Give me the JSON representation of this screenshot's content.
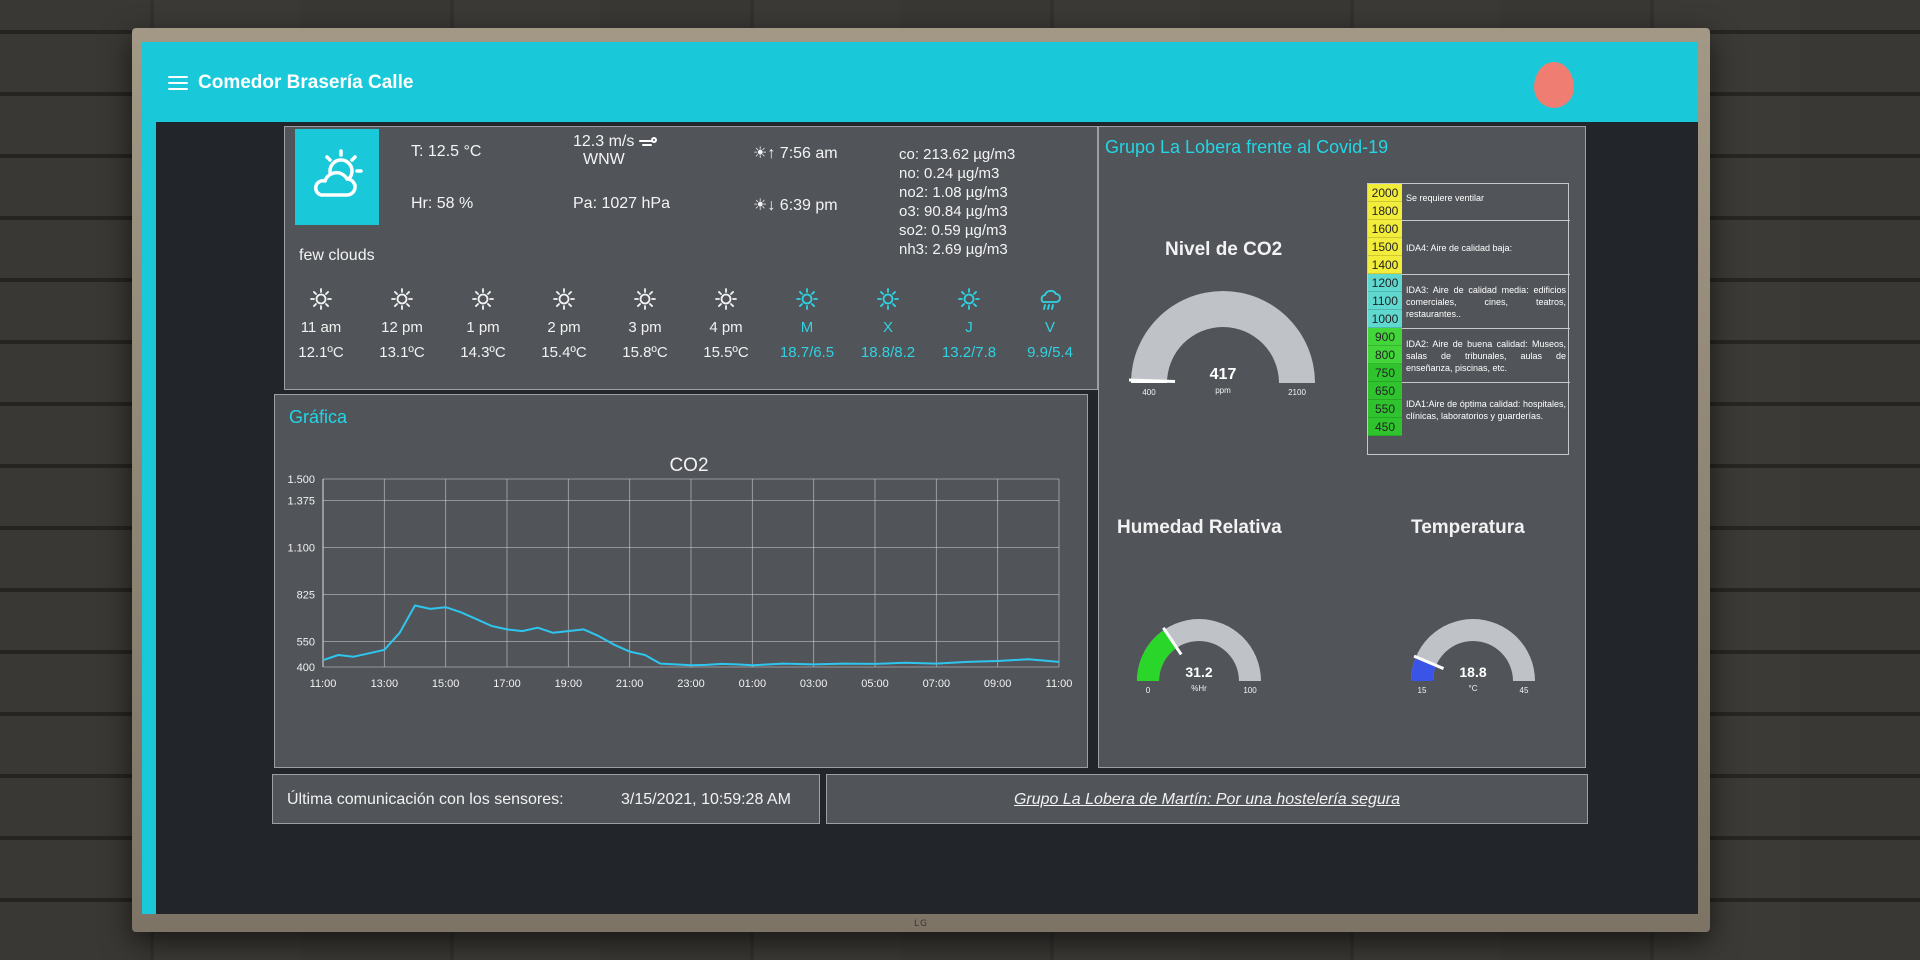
{
  "header": {
    "title": "Comedor Brasería Calle"
  },
  "weather": {
    "temperature": "T: 12.5 °C",
    "humidity": "Hr: 58 %",
    "wind_speed": "12.3 m/s",
    "wind_dir": "WNW",
    "pressure": "Pa: 1027 hPa",
    "sunrise": "7:56 am",
    "sunset": "6:39 pm",
    "condition": "few clouds",
    "main_icon": "partly-cloudy-day-icon",
    "air_quality": [
      "co: 213.62 µg/m3",
      "no: 0.24 µg/m3",
      "no2: 1.08 µg/m3",
      "o3: 90.84 µg/m3",
      "so2: 0.59 µg/m3",
      "nh3: 2.69 µg/m3"
    ],
    "hourly": [
      {
        "label": "11 am",
        "value": "12.1ºC",
        "icon": "sun-icon"
      },
      {
        "label": "12 pm",
        "value": "13.1ºC",
        "icon": "sun-icon"
      },
      {
        "label": "1 pm",
        "value": "14.3ºC",
        "icon": "sun-icon"
      },
      {
        "label": "2 pm",
        "value": "15.4ºC",
        "icon": "sun-icon"
      },
      {
        "label": "3 pm",
        "value": "15.8ºC",
        "icon": "sun-icon"
      },
      {
        "label": "4 pm",
        "value": "15.5ºC",
        "icon": "sun-icon"
      }
    ],
    "daily": [
      {
        "label": "M",
        "value": "18.7/6.5",
        "icon": "sun-icon"
      },
      {
        "label": "X",
        "value": "18.8/8.2",
        "icon": "sun-icon"
      },
      {
        "label": "J",
        "value": "13.2/7.8",
        "icon": "sun-icon"
      },
      {
        "label": "V",
        "value": "9.9/5.4",
        "icon": "rain-cloud-icon"
      }
    ]
  },
  "graph": {
    "panel_title": "Gráfica",
    "chart_data": {
      "type": "line",
      "title": "CO2",
      "xlabel": "",
      "ylabel": "",
      "ylim": [
        400,
        1500
      ],
      "yticks": [
        400,
        550,
        825,
        1100,
        1375,
        1500
      ],
      "ytick_labels": [
        "400",
        "550",
        "825",
        "1.100",
        "1.375",
        "1.500"
      ],
      "xtick_labels": [
        "11:00",
        "13:00",
        "15:00",
        "17:00",
        "19:00",
        "21:00",
        "23:00",
        "01:00",
        "03:00",
        "05:00",
        "07:00",
        "09:00",
        "11:00"
      ],
      "grid": true,
      "series": [
        {
          "color": "#2ec6ee",
          "x": [
            0,
            0.5,
            1,
            1.5,
            2,
            2.5,
            3,
            3.5,
            4,
            4.5,
            5,
            5.5,
            6,
            6.5,
            7,
            7.5,
            8,
            8.5,
            9,
            9.5,
            10,
            10.5,
            11,
            11.5,
            12,
            12.5,
            13,
            13.5,
            14,
            15,
            16,
            17,
            18,
            19,
            20,
            21,
            22,
            23,
            24
          ],
          "values": [
            440,
            470,
            460,
            480,
            500,
            600,
            760,
            740,
            750,
            720,
            680,
            640,
            620,
            610,
            630,
            600,
            610,
            620,
            580,
            530,
            490,
            470,
            420,
            415,
            410,
            412,
            418,
            415,
            410,
            420,
            415,
            420,
            418,
            425,
            420,
            430,
            435,
            445,
            430
          ]
        }
      ]
    }
  },
  "covid": {
    "title": "Grupo La Lobera frente al Covid-19",
    "co2_gauge": {
      "title": "Nivel de CO2",
      "value": "417",
      "unit": "ppm",
      "min": "400",
      "max": "2100",
      "fraction": 0.01
    },
    "humidity_gauge": {
      "title": "Humedad Relativa",
      "value": "31.2",
      "unit": "%Hr",
      "min": "0",
      "max": "100",
      "fraction": 0.312
    },
    "temp_gauge": {
      "title": "Temperatura",
      "value": "18.8",
      "unit": "°C",
      "min": "15",
      "max": "45",
      "fraction": 0.127
    },
    "legend": {
      "levels": [
        {
          "v": "2000",
          "c": "#f2ec3a"
        },
        {
          "v": "1800",
          "c": "#f2ec3a"
        },
        {
          "v": "1600",
          "c": "#f2ec3a"
        },
        {
          "v": "1500",
          "c": "#f2ec3a"
        },
        {
          "v": "1400",
          "c": "#f2ec3a"
        },
        {
          "v": "1200",
          "c": "#5fd8d0"
        },
        {
          "v": "1100",
          "c": "#5fd8d0"
        },
        {
          "v": "1000",
          "c": "#5fd8d0"
        },
        {
          "v": "900",
          "c": "#43d63a"
        },
        {
          "v": "800",
          "c": "#43d63a"
        },
        {
          "v": "750",
          "c": "#2fc42e"
        },
        {
          "v": "650",
          "c": "#2fc42e"
        },
        {
          "v": "550",
          "c": "#2fc42e"
        },
        {
          "v": "450",
          "c": "#2fc42e"
        }
      ],
      "notes": [
        "Se requiere ventilar",
        "IDA4: Aire de calidad baja:",
        "IDA3: Aire de calidad media: edificios comerciales, cines, teatros, restaurantes..",
        "IDA2: Aire de buena calidad: Museos, salas de tribunales, aulas de enseñanza, piscinas, etc.",
        "IDA1:Aire de óptima calidad: hospitales, clínicas, laboratorios y guarderías."
      ]
    }
  },
  "footer": {
    "last_comm_label": "Última comunicación con los sensores:",
    "last_comm_value": "3/15/2021, 10:59:28 AM",
    "link": "Grupo La Lobera de Martín: Por una hostelería segura"
  },
  "device": {
    "logo": "LG"
  },
  "colors": {
    "accent": "#19c9da",
    "gauge_track": "#bfc3c7",
    "co2_fill": "#ffffff",
    "humidity_fill": "#2bd62b",
    "temp_fill": "#3a54e8"
  }
}
